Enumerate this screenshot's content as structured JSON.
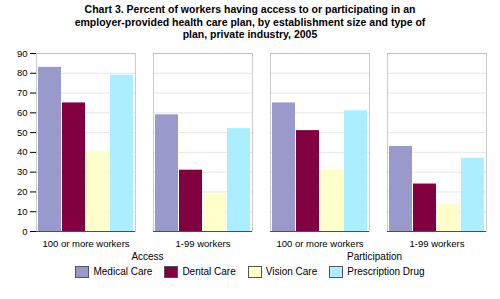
{
  "chart_data": {
    "type": "bar",
    "title": "Chart 3.  Percent of workers having access to or participating in an\nemployer-provided health care plan, by establishment size and type of\nplan, private industry, 2005",
    "categories": [
      "100 or more workers",
      "1-99 workers",
      "100 or more workers",
      "1-99 workers"
    ],
    "sections": [
      "Access",
      "Access",
      "Participation",
      "Participation"
    ],
    "series": [
      {
        "name": "Medical Care",
        "color": "#9999cc",
        "values": [
          83,
          59,
          65,
          43
        ]
      },
      {
        "name": "Dental Care",
        "color": "#800040",
        "values": [
          65,
          31,
          51,
          24
        ]
      },
      {
        "name": "Vision Care",
        "color": "#ffffcc",
        "values": [
          40,
          19,
          31,
          14
        ]
      },
      {
        "name": "Prescription Drug",
        "color": "#aaeeff",
        "values": [
          79,
          52,
          61,
          37
        ]
      }
    ],
    "ylim": [
      0,
      90
    ],
    "yticks": [
      0,
      10,
      20,
      30,
      40,
      50,
      60,
      70,
      80,
      90
    ],
    "grid": true
  }
}
